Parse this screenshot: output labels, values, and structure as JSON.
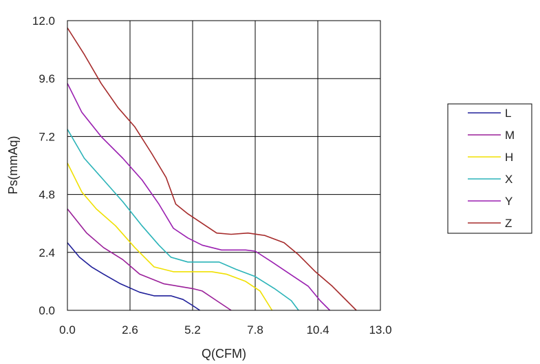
{
  "chart_data": {
    "type": "line",
    "title": "",
    "xlabel": "Q(CFM)",
    "ylabel": "Ps(mmAq)",
    "xlim": [
      0,
      13
    ],
    "ylim": [
      0,
      12
    ],
    "xticks": [
      "0.0",
      "2.6",
      "5.2",
      "7.8",
      "10.4",
      "13.0"
    ],
    "yticks": [
      "0.0",
      "2.4",
      "4.8",
      "7.2",
      "9.6",
      "12.0"
    ],
    "grid": true,
    "legend_position": "right",
    "series": [
      {
        "name": "L",
        "color": "#1f1f99",
        "x": [
          0.0,
          0.5,
          1.0,
          1.5,
          2.2,
          3.0,
          3.6,
          4.3,
          4.8,
          5.2,
          5.5
        ],
        "y": [
          2.8,
          2.2,
          1.8,
          1.5,
          1.1,
          0.75,
          0.6,
          0.6,
          0.45,
          0.2,
          0.0
        ]
      },
      {
        "name": "M",
        "color": "#9a1f99",
        "x": [
          0.0,
          0.8,
          1.5,
          2.3,
          3.0,
          4.0,
          4.6,
          5.2,
          5.6,
          6.2,
          6.8
        ],
        "y": [
          4.2,
          3.2,
          2.6,
          2.1,
          1.5,
          1.1,
          1.0,
          0.9,
          0.8,
          0.4,
          0.0
        ]
      },
      {
        "name": "H",
        "color": "#f0e000",
        "x": [
          0.0,
          0.6,
          1.2,
          2.0,
          2.8,
          3.6,
          4.4,
          5.0,
          6.0,
          6.6,
          7.4,
          8.0,
          8.5
        ],
        "y": [
          6.1,
          4.9,
          4.2,
          3.5,
          2.6,
          1.8,
          1.6,
          1.6,
          1.6,
          1.5,
          1.2,
          0.8,
          0.0
        ]
      },
      {
        "name": "X",
        "color": "#2ab3b8",
        "x": [
          0.0,
          0.7,
          1.5,
          2.3,
          3.1,
          3.8,
          4.3,
          5.0,
          6.3,
          7.0,
          7.8,
          8.6,
          9.3,
          9.6
        ],
        "y": [
          7.5,
          6.3,
          5.4,
          4.5,
          3.5,
          2.7,
          2.2,
          2.0,
          2.0,
          1.7,
          1.4,
          0.9,
          0.4,
          0.0
        ]
      },
      {
        "name": "Y",
        "color": "#9a1fb0",
        "x": [
          0.0,
          0.6,
          1.4,
          2.3,
          3.1,
          3.8,
          4.4,
          5.0,
          5.6,
          6.4,
          7.4,
          7.8,
          8.5,
          9.4,
          10.0,
          10.5,
          10.9
        ],
        "y": [
          9.4,
          8.2,
          7.2,
          6.3,
          5.4,
          4.4,
          3.4,
          3.0,
          2.7,
          2.5,
          2.5,
          2.45,
          2.0,
          1.4,
          1.0,
          0.4,
          0.0
        ]
      },
      {
        "name": "Z",
        "color": "#a52a2a",
        "x": [
          0.0,
          0.7,
          1.4,
          2.1,
          2.8,
          3.5,
          4.1,
          4.5,
          5.0,
          5.6,
          6.2,
          6.8,
          7.5,
          8.2,
          9.0,
          9.6,
          10.3,
          11.0,
          11.6,
          12.0
        ],
        "y": [
          11.7,
          10.6,
          9.4,
          8.4,
          7.6,
          6.5,
          5.5,
          4.4,
          4.0,
          3.6,
          3.2,
          3.15,
          3.2,
          3.1,
          2.8,
          2.3,
          1.6,
          1.0,
          0.4,
          0.0
        ]
      }
    ]
  }
}
